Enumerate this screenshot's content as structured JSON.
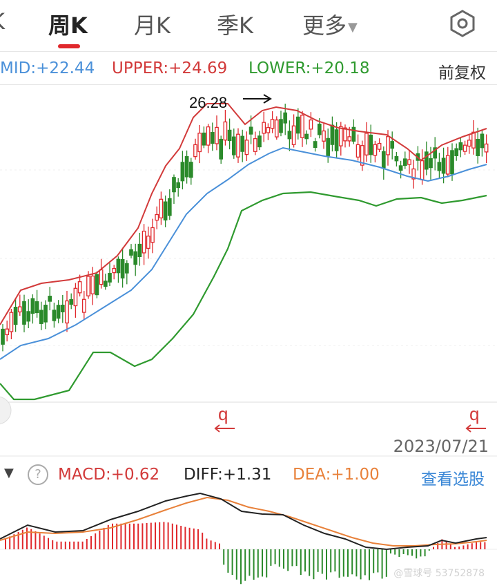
{
  "tabs": [
    {
      "label": "K"
    },
    {
      "label": "周K"
    },
    {
      "label": "月K"
    },
    {
      "label": "季K"
    },
    {
      "label": "更多"
    }
  ],
  "boll": {
    "mid": "MID:+22.44",
    "upper": "UPPER:+24.69",
    "lower": "LOWER:+20.18",
    "adjust": "前复权"
  },
  "chart": {
    "peak_label": "26.28",
    "marker_left": "q",
    "marker_right": "q",
    "date": "2023/07/21",
    "colors": {
      "up": "#e0282c",
      "down": "#2b8a2b",
      "mid": "#4a90d9",
      "upper": "#d23a3a",
      "lower": "#2f9a2f",
      "dea": "#e8813a",
      "diff": "#222222"
    }
  },
  "macd": {
    "macd": "MACD:+0.62",
    "diff": "DIFF:+1.31",
    "dea": "DEA:+1.00",
    "pick": "查看选股"
  },
  "watermark": "@雪球号 53752878"
}
